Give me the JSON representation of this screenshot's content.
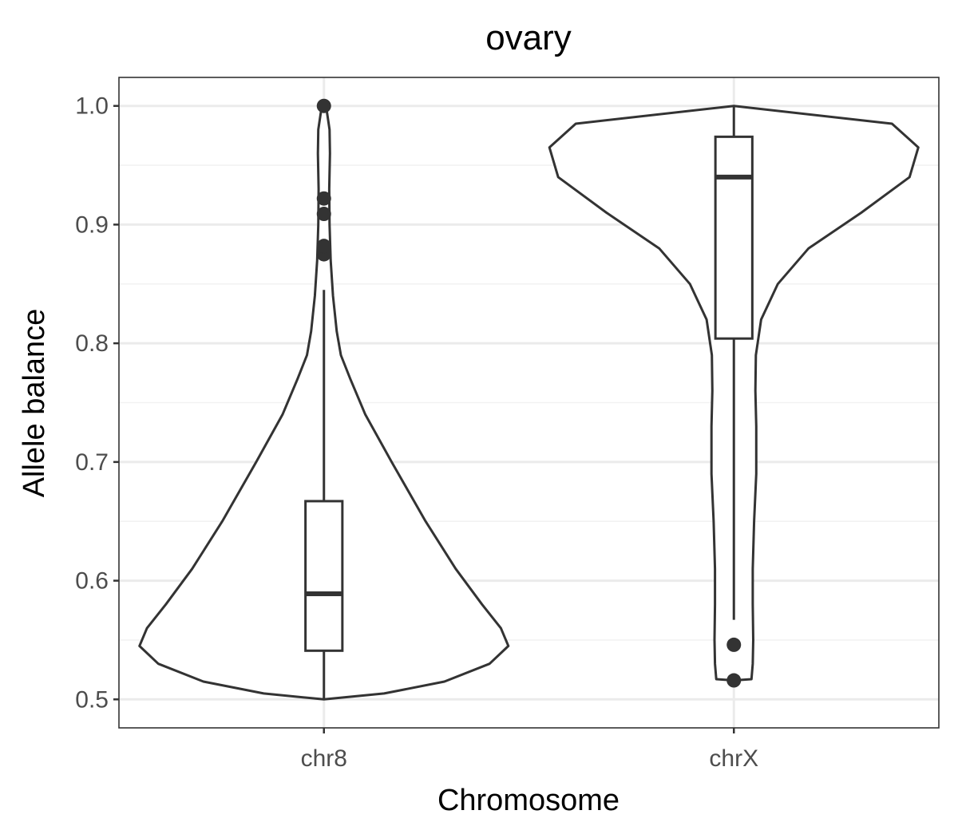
{
  "chart_data": {
    "type": "violin",
    "title": "ovary",
    "xlabel": "Chromosome",
    "ylabel": "Allele balance",
    "ylim": [
      0.476,
      1.024
    ],
    "y_ticks": [
      {
        "value": 0.5,
        "label": "0.5"
      },
      {
        "value": 0.6,
        "label": "0.6"
      },
      {
        "value": 0.7,
        "label": "0.7"
      },
      {
        "value": 0.8,
        "label": "0.8"
      },
      {
        "value": 0.9,
        "label": "0.9"
      },
      {
        "value": 1.0,
        "label": "1.0"
      }
    ],
    "y_minor_ticks": [
      0.55,
      0.65,
      0.75,
      0.85,
      0.95
    ],
    "categories": [
      "chr8",
      "chrX"
    ],
    "grid": true,
    "colors": {
      "line": "#333333",
      "fill": "#ffffff",
      "grid": "#ebebeb"
    },
    "groups": [
      {
        "category": "chr8",
        "violin_density": [
          [
            0.5,
            0.0
          ],
          [
            0.505,
            0.16
          ],
          [
            0.515,
            0.32
          ],
          [
            0.53,
            0.44
          ],
          [
            0.545,
            0.49
          ],
          [
            0.56,
            0.47
          ],
          [
            0.58,
            0.42
          ],
          [
            0.61,
            0.35
          ],
          [
            0.65,
            0.27
          ],
          [
            0.7,
            0.18
          ],
          [
            0.74,
            0.11
          ],
          [
            0.77,
            0.07
          ],
          [
            0.79,
            0.045
          ],
          [
            0.81,
            0.034
          ],
          [
            0.84,
            0.024
          ],
          [
            0.87,
            0.018
          ],
          [
            0.9,
            0.015
          ],
          [
            0.93,
            0.014
          ],
          [
            0.96,
            0.016
          ],
          [
            0.98,
            0.015
          ],
          [
            0.995,
            0.008
          ],
          [
            1.0,
            0.0
          ]
        ],
        "box": {
          "q1": 0.541,
          "median": 0.589,
          "q3": 0.667,
          "whisker_low": 0.5,
          "whisker_high": 0.845
        },
        "outliers": [
          0.875,
          0.882,
          0.909,
          0.922,
          1.0
        ]
      },
      {
        "category": "chrX",
        "violin_density": [
          [
            0.516,
            0.0
          ],
          [
            0.517,
            0.04
          ],
          [
            0.53,
            0.043
          ],
          [
            0.55,
            0.044
          ],
          [
            0.58,
            0.043
          ],
          [
            0.61,
            0.043
          ],
          [
            0.65,
            0.046
          ],
          [
            0.69,
            0.051
          ],
          [
            0.73,
            0.051
          ],
          [
            0.76,
            0.049
          ],
          [
            0.79,
            0.05
          ],
          [
            0.82,
            0.062
          ],
          [
            0.85,
            0.1
          ],
          [
            0.88,
            0.17
          ],
          [
            0.91,
            0.29
          ],
          [
            0.94,
            0.4
          ],
          [
            0.965,
            0.42
          ],
          [
            0.985,
            0.36
          ],
          [
            1.0,
            0.0
          ]
        ],
        "box": {
          "q1": 0.804,
          "median": 0.94,
          "q3": 0.974,
          "whisker_low": 0.567,
          "whisker_high": 1.0
        },
        "outliers": [
          0.516,
          0.546
        ]
      }
    ]
  }
}
